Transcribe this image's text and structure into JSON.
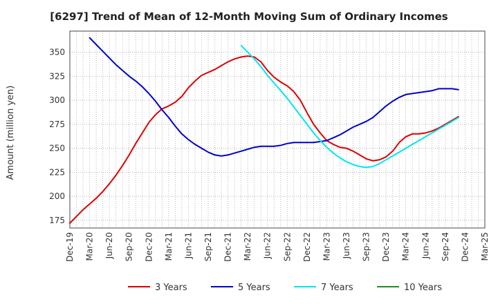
{
  "chart_data": {
    "type": "line",
    "title": "[6297]  Trend of Mean of 12-Month Moving Sum of Ordinary Incomes",
    "xlabel": "",
    "ylabel": "Amount (million yen)",
    "ylim": [
      167,
      372
    ],
    "yticks": [
      175,
      200,
      225,
      250,
      275,
      300,
      325,
      350
    ],
    "xticks": [
      "Dec-19",
      "Mar-20",
      "Jun-20",
      "Sep-20",
      "Dec-20",
      "Mar-21",
      "Jun-21",
      "Sep-21",
      "Dec-21",
      "Mar-22",
      "Jun-22",
      "Sep-22",
      "Dec-22",
      "Mar-23",
      "Jun-23",
      "Sep-23",
      "Dec-23",
      "Mar-24",
      "Jun-24",
      "Sep-24",
      "Dec-24",
      "Mar-25"
    ],
    "grid": true,
    "legend_position": "bottom",
    "series": [
      {
        "name": "3 Years",
        "color": "#dd0000",
        "points": [
          [
            0,
            172
          ],
          [
            1,
            179
          ],
          [
            2,
            186
          ],
          [
            3,
            192
          ],
          [
            4,
            198
          ],
          [
            5,
            205
          ],
          [
            6,
            213
          ],
          [
            7,
            222
          ],
          [
            8,
            232
          ],
          [
            9,
            243
          ],
          [
            10,
            255
          ],
          [
            11,
            266
          ],
          [
            12,
            277
          ],
          [
            13,
            285
          ],
          [
            14,
            291
          ],
          [
            15,
            294
          ],
          [
            16,
            298
          ],
          [
            17,
            304
          ],
          [
            18,
            313
          ],
          [
            19,
            320
          ],
          [
            20,
            326
          ],
          [
            21,
            329
          ],
          [
            22,
            332
          ],
          [
            23,
            336
          ],
          [
            24,
            340
          ],
          [
            25,
            343
          ],
          [
            26,
            345
          ],
          [
            27,
            346
          ],
          [
            28,
            345
          ],
          [
            29,
            340
          ],
          [
            30,
            331
          ],
          [
            31,
            324
          ],
          [
            32,
            319
          ],
          [
            33,
            315
          ],
          [
            34,
            309
          ],
          [
            35,
            300
          ],
          [
            36,
            287
          ],
          [
            37,
            275
          ],
          [
            38,
            266
          ],
          [
            39,
            258
          ],
          [
            40,
            254
          ],
          [
            41,
            251
          ],
          [
            42,
            250
          ],
          [
            43,
            247
          ],
          [
            44,
            243
          ],
          [
            45,
            239
          ],
          [
            46,
            237
          ],
          [
            47,
            238
          ],
          [
            48,
            241
          ],
          [
            49,
            247
          ],
          [
            50,
            256
          ],
          [
            51,
            262
          ],
          [
            52,
            265
          ],
          [
            53,
            265
          ],
          [
            54,
            266
          ],
          [
            55,
            268
          ],
          [
            56,
            271
          ],
          [
            57,
            275
          ],
          [
            58,
            279
          ],
          [
            59,
            283
          ]
        ]
      },
      {
        "name": "5 Years",
        "color": "#0000cc",
        "points": [
          [
            3,
            365
          ],
          [
            4,
            358
          ],
          [
            5,
            351
          ],
          [
            6,
            344
          ],
          [
            7,
            337
          ],
          [
            8,
            331
          ],
          [
            9,
            325
          ],
          [
            10,
            320
          ],
          [
            11,
            314
          ],
          [
            12,
            307
          ],
          [
            13,
            299
          ],
          [
            14,
            290
          ],
          [
            15,
            282
          ],
          [
            16,
            273
          ],
          [
            17,
            265
          ],
          [
            18,
            259
          ],
          [
            19,
            254
          ],
          [
            20,
            250
          ],
          [
            21,
            246
          ],
          [
            22,
            243
          ],
          [
            23,
            242
          ],
          [
            24,
            243
          ],
          [
            25,
            245
          ],
          [
            26,
            247
          ],
          [
            27,
            249
          ],
          [
            28,
            251
          ],
          [
            29,
            252
          ],
          [
            30,
            252
          ],
          [
            31,
            252
          ],
          [
            32,
            253
          ],
          [
            33,
            255
          ],
          [
            34,
            256
          ],
          [
            35,
            256
          ],
          [
            36,
            256
          ],
          [
            37,
            256
          ],
          [
            38,
            257
          ],
          [
            39,
            258
          ],
          [
            40,
            261
          ],
          [
            41,
            264
          ],
          [
            42,
            268
          ],
          [
            43,
            272
          ],
          [
            44,
            275
          ],
          [
            45,
            278
          ],
          [
            46,
            282
          ],
          [
            47,
            288
          ],
          [
            48,
            294
          ],
          [
            49,
            299
          ],
          [
            50,
            303
          ],
          [
            51,
            306
          ],
          [
            52,
            307
          ],
          [
            53,
            308
          ],
          [
            54,
            309
          ],
          [
            55,
            310
          ],
          [
            56,
            312
          ],
          [
            57,
            312
          ],
          [
            58,
            312
          ],
          [
            59,
            311
          ]
        ]
      },
      {
        "name": "7 Years",
        "color": "#00e5ee",
        "points": [
          [
            26,
            357
          ],
          [
            27,
            350
          ],
          [
            28,
            343
          ],
          [
            29,
            335
          ],
          [
            30,
            326
          ],
          [
            31,
            318
          ],
          [
            32,
            310
          ],
          [
            33,
            302
          ],
          [
            34,
            293
          ],
          [
            35,
            284
          ],
          [
            36,
            275
          ],
          [
            37,
            266
          ],
          [
            38,
            258
          ],
          [
            39,
            251
          ],
          [
            40,
            245
          ],
          [
            41,
            240
          ],
          [
            42,
            236
          ],
          [
            43,
            233
          ],
          [
            44,
            231
          ],
          [
            45,
            230
          ],
          [
            46,
            231
          ],
          [
            47,
            234
          ],
          [
            48,
            238
          ],
          [
            49,
            242
          ],
          [
            50,
            246
          ],
          [
            51,
            250
          ],
          [
            52,
            254
          ],
          [
            53,
            258
          ],
          [
            54,
            262
          ],
          [
            55,
            266
          ],
          [
            56,
            270
          ],
          [
            57,
            274
          ],
          [
            58,
            278
          ],
          [
            59,
            282
          ]
        ]
      },
      {
        "name": "10 Years",
        "color": "#228b22",
        "points": []
      }
    ]
  }
}
